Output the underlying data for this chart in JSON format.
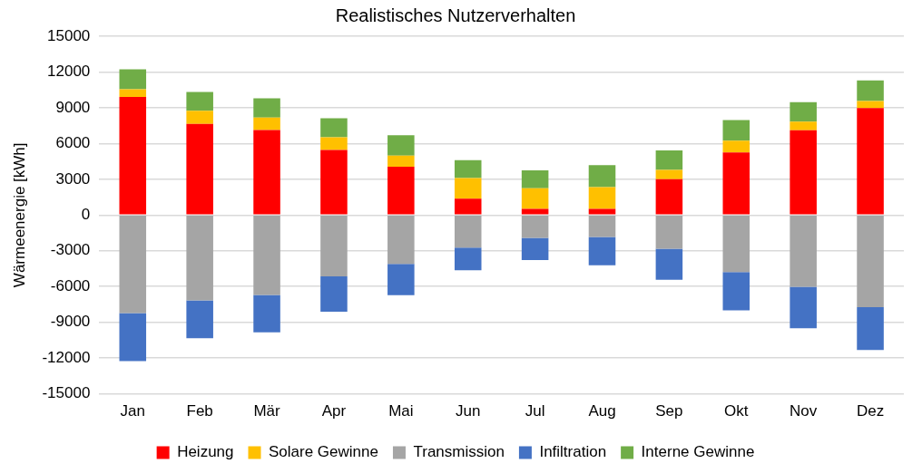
{
  "chart_data": {
    "type": "bar",
    "title": "Realistisches Nutzerverhalten",
    "ylabel": "Wärmeenergie [kWh]",
    "categories": [
      "Jan",
      "Feb",
      "Mär",
      "Apr",
      "Mai",
      "Jun",
      "Jul",
      "Aug",
      "Sep",
      "Okt",
      "Nov",
      "Dez"
    ],
    "stacked": true,
    "grid": "y",
    "legend": "bottom",
    "ylim": [
      -15000,
      15000
    ],
    "yticks": [
      -15000,
      -12000,
      -9000,
      -6000,
      -3000,
      0,
      3000,
      6000,
      9000,
      12000,
      15000
    ],
    "series": [
      {
        "name": "Heizung",
        "color": "#ff0000",
        "values": [
          9900,
          7650,
          7140,
          5460,
          4060,
          1370,
          520,
          520,
          3000,
          5250,
          7110,
          8970
        ]
      },
      {
        "name": "Solare Gewinne",
        "color": "#ffc000",
        "values": [
          650,
          1090,
          1030,
          1060,
          930,
          1730,
          1730,
          1830,
          780,
          980,
          730,
          600
        ]
      },
      {
        "name": "Transmission",
        "color": "#a5a5a5",
        "values": [
          -8220,
          -7160,
          -6700,
          -5150,
          -4110,
          -2740,
          -1910,
          -1840,
          -2820,
          -4780,
          -6030,
          -7730
        ]
      },
      {
        "name": "Infiltration",
        "color": "#4472c4",
        "values": [
          -4040,
          -3180,
          -3150,
          -2970,
          -2610,
          -1890,
          -1870,
          -2380,
          -2610,
          -3210,
          -3460,
          -3600
        ]
      },
      {
        "name": "Interne Gewinne",
        "color": "#70ad47",
        "values": [
          1680,
          1580,
          1630,
          1600,
          1710,
          1500,
          1500,
          1840,
          1650,
          1730,
          1620,
          1730
        ]
      }
    ]
  }
}
